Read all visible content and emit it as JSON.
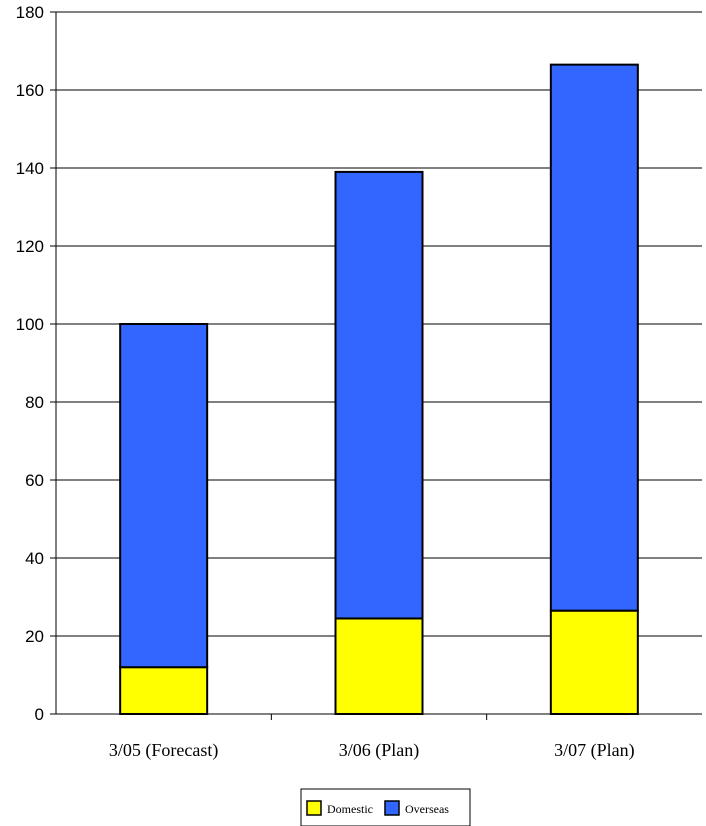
{
  "chart_data": {
    "type": "bar",
    "stacked": true,
    "categories": [
      "3/05 (Forecast)",
      "3/06 (Plan)",
      "3/07 (Plan)"
    ],
    "series": [
      {
        "name": "Domestic",
        "values": [
          12,
          24.5,
          26.5
        ],
        "color": "#FFFF00"
      },
      {
        "name": "Overseas",
        "values": [
          88,
          114.5,
          140
        ],
        "color": "#3366FF"
      }
    ],
    "totals": [
      100,
      139,
      166.5
    ],
    "ylim": [
      0,
      180
    ],
    "yticks": [
      0,
      20,
      40,
      60,
      80,
      100,
      120,
      140,
      160,
      180
    ],
    "grid": true,
    "legend": {
      "position": "bottom-center",
      "entries": [
        "Domestic",
        "Overseas"
      ]
    }
  }
}
